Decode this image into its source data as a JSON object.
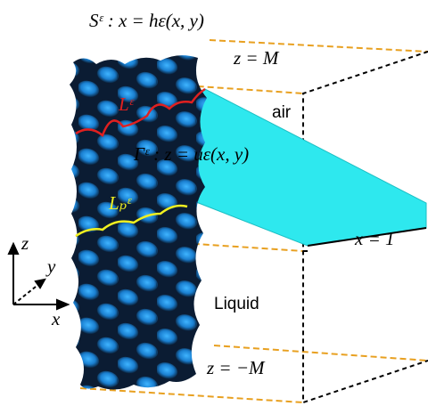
{
  "labels": {
    "surface": "Sᵋ : x = hε(x, y)",
    "top": "z = M",
    "air": "air",
    "contact_line": "Lᵋ",
    "interface": "Γᵋ : z = uε(x, y)",
    "pinned_line": "Lₚᵋ",
    "wall_far": "x = 1",
    "axis_z": "z",
    "axis_y": "y",
    "axis_x": "x",
    "liquid": "Liquid",
    "bottom": "z = −M"
  }
}
